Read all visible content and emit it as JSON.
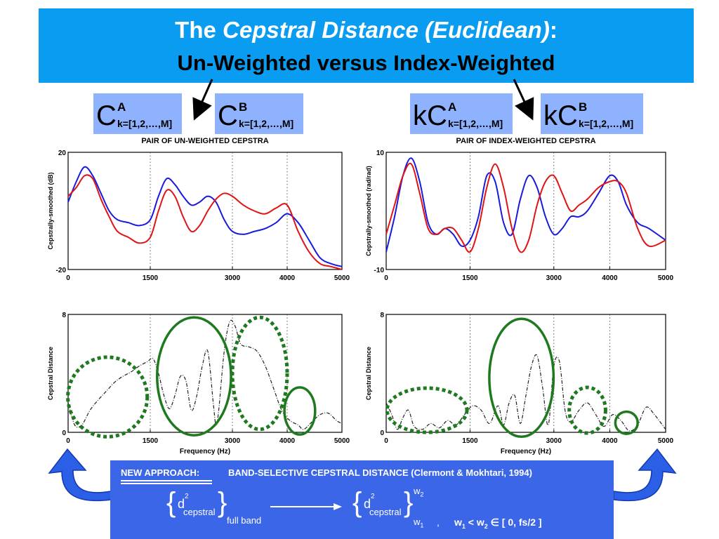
{
  "header": {
    "title_prefix": "The ",
    "title_italic": "Cepstral Distance (Euclidean)",
    "title_suffix": ":",
    "subtitle": "Un-Weighted versus Index-Weighted"
  },
  "labels": [
    {
      "prefix": "",
      "main": "C",
      "sup": "A",
      "sub": "k=[1,2,…,M]"
    },
    {
      "prefix": "",
      "main": "C",
      "sup": "B",
      "sub": "k=[1,2,…,M]"
    },
    {
      "prefix": "k",
      "main": "C",
      "sup": "A",
      "sub": "k=[1,2,…,M]"
    },
    {
      "prefix": "k",
      "main": "C",
      "sup": "B",
      "sub": "k=[1,2,…,M]"
    }
  ],
  "chart_data": [
    {
      "type": "line",
      "title": "PAIR OF UN-WEIGHTED CEPSTRA",
      "ylabel": "Cepstrally-smoothed (dB)",
      "xlabel": "",
      "xlim": [
        0,
        5000
      ],
      "ylim": [
        -20,
        20
      ],
      "xticks": [
        "0",
        "1500",
        "3000",
        "4000",
        "5000"
      ],
      "yticks": [
        "-20",
        "20"
      ],
      "vlines": [
        1500,
        3000,
        4000
      ],
      "series": [
        {
          "color": "#1a1adf",
          "x": [
            0,
            150,
            300,
            450,
            600,
            750,
            900,
            1100,
            1300,
            1500,
            1650,
            1800,
            1950,
            2100,
            2250,
            2400,
            2550,
            2700,
            2850,
            3000,
            3200,
            3400,
            3600,
            3800,
            4000,
            4200,
            4400,
            4600,
            4800,
            5000
          ],
          "y": [
            3,
            10,
            15,
            12,
            6,
            0,
            -3,
            -4,
            -5,
            -3,
            5,
            11,
            9,
            5,
            2,
            3,
            5,
            3,
            -3,
            -7,
            -8,
            -7,
            -6,
            -4,
            -1,
            -4,
            -10,
            -16,
            -18,
            -19
          ]
        },
        {
          "color": "#e01414",
          "x": [
            0,
            150,
            300,
            450,
            600,
            750,
            900,
            1100,
            1300,
            1500,
            1650,
            1800,
            1950,
            2100,
            2250,
            2400,
            2550,
            2700,
            2850,
            3000,
            3200,
            3400,
            3600,
            3800,
            4000,
            4200,
            4400,
            4600,
            4800,
            5000
          ],
          "y": [
            5,
            8,
            12,
            11,
            4,
            -2,
            -7,
            -9,
            -11,
            -9,
            0,
            7,
            5,
            -2,
            -7,
            -5,
            0,
            4,
            6,
            5,
            2,
            0,
            -1,
            1,
            2,
            -7,
            -14,
            -18,
            -19,
            -20
          ]
        }
      ]
    },
    {
      "type": "line",
      "title": "PAIR OF INDEX-WEIGHTED CEPSTRA",
      "ylabel": "Cepstrally-smoothed (rad/rad)",
      "xlabel": "",
      "xlim": [
        0,
        5000
      ],
      "ylim": [
        -10,
        10
      ],
      "xticks": [
        "0",
        "1500",
        "3000",
        "4000",
        "5000"
      ],
      "yticks": [
        "-10",
        "10"
      ],
      "vlines": [
        1500,
        3000,
        4000
      ],
      "series": [
        {
          "color": "#1a1adf",
          "x": [
            0,
            150,
            300,
            450,
            600,
            750,
            900,
            1050,
            1200,
            1350,
            1500,
            1650,
            1800,
            1950,
            2100,
            2250,
            2400,
            2550,
            2700,
            2850,
            3000,
            3150,
            3300,
            3450,
            3600,
            3800,
            4000,
            4150,
            4300,
            4500,
            4700,
            5000
          ],
          "y": [
            -7,
            -1,
            6,
            9,
            5,
            -2,
            -4,
            -3,
            -4,
            -6,
            -5,
            -1,
            6,
            5,
            -2,
            -4,
            2,
            6,
            4,
            -1,
            -4,
            -3,
            -1,
            -1,
            0,
            3,
            6,
            5,
            1,
            -2,
            -3,
            -5
          ]
        },
        {
          "color": "#e01414",
          "x": [
            0,
            150,
            300,
            450,
            600,
            750,
            900,
            1050,
            1200,
            1350,
            1500,
            1650,
            1800,
            1950,
            2100,
            2250,
            2400,
            2550,
            2700,
            2850,
            3000,
            3150,
            3300,
            3450,
            3600,
            3800,
            4000,
            4150,
            4300,
            4500,
            4700,
            5000
          ],
          "y": [
            -4,
            1,
            6,
            8,
            3,
            -3,
            -4,
            -3,
            -3,
            -5,
            -7,
            -3,
            4,
            8,
            4,
            -3,
            -7,
            -5,
            1,
            5,
            6,
            3,
            0,
            1,
            2,
            4,
            5,
            5,
            3,
            -3,
            -6,
            -5
          ]
        }
      ]
    },
    {
      "type": "line",
      "title": "",
      "ylabel": "Cepstral Distance",
      "xlabel": "Frequency (Hz)",
      "xlim": [
        0,
        5000
      ],
      "ylim": [
        0,
        8
      ],
      "xticks": [
        "0",
        "1500",
        "3000",
        "4000",
        "5000"
      ],
      "yticks": [
        "0",
        "8"
      ],
      "vlines": [
        1500,
        3000,
        4000
      ],
      "series": [
        {
          "color": "#222222",
          "x": [
            0,
            120,
            250,
            400,
            550,
            700,
            850,
            1000,
            1150,
            1300,
            1450,
            1550,
            1650,
            1750,
            1850,
            1950,
            2050,
            2150,
            2250,
            2350,
            2450,
            2550,
            2650,
            2700,
            2750,
            2850,
            2950,
            3050,
            3150,
            3300,
            3450,
            3600,
            3750,
            3900,
            4050,
            4200,
            4300,
            4450,
            4600,
            4750,
            4900,
            5000
          ],
          "y": [
            2,
            0.5,
            0.5,
            1.5,
            2.2,
            2.8,
            3.4,
            3.8,
            4.1,
            4.5,
            4.8,
            5,
            4,
            2.5,
            1.6,
            2.5,
            3.8,
            3.5,
            1.5,
            2.5,
            4.5,
            5.5,
            2,
            0.5,
            1.5,
            5.5,
            7.5,
            7.2,
            6,
            5.8,
            5.5,
            4.5,
            3,
            1.5,
            0.8,
            0.5,
            0.2,
            0.7,
            1.2,
            1.3,
            0.8,
            0.6
          ]
        }
      ],
      "ellipses": [
        {
          "cx": 720,
          "cy": 2.4,
          "rx": 1450,
          "ry": 2.7,
          "style": "dotted"
        },
        {
          "cx": 2300,
          "cy": 3.8,
          "rx": 1350,
          "ry": 4.0,
          "style": "solid"
        },
        {
          "cx": 3500,
          "cy": 4.0,
          "rx": 1000,
          "ry": 3.8,
          "style": "dotted"
        },
        {
          "cx": 4230,
          "cy": 1.45,
          "rx": 560,
          "ry": 1.6,
          "style": "solid"
        }
      ]
    },
    {
      "type": "line",
      "title": "",
      "ylabel": "Cepstral Distance",
      "xlabel": "Frequency (Hz)",
      "xlim": [
        0,
        5000
      ],
      "ylim": [
        0,
        8
      ],
      "xticks": [
        "0",
        "1500",
        "3000",
        "4000",
        "5000"
      ],
      "yticks": [
        "0",
        "8"
      ],
      "vlines": [
        1500,
        3000,
        4000
      ],
      "series": [
        {
          "color": "#222222",
          "x": [
            0,
            100,
            200,
            300,
            400,
            500,
            650,
            800,
            950,
            1100,
            1250,
            1400,
            1550,
            1700,
            1850,
            2000,
            2100,
            2200,
            2300,
            2400,
            2500,
            2600,
            2700,
            2800,
            2900,
            3000,
            3100,
            3200,
            3300,
            3450,
            3600,
            3750,
            3900,
            4050,
            4200,
            4350,
            4500,
            4650,
            4800,
            5000
          ],
          "y": [
            2,
            1.2,
            0.2,
            1,
            1.5,
            0.4,
            0.2,
            0.6,
            0.3,
            0.8,
            0.5,
            1.2,
            1.8,
            1.5,
            0.6,
            1.8,
            0.5,
            2,
            2.5,
            0.6,
            2.5,
            4.5,
            5.2,
            3,
            0.5,
            4.5,
            4.8,
            1.5,
            0.7,
            1.5,
            2,
            1.2,
            0.4,
            1.2,
            0.8,
            0.1,
            0.5,
            1.7,
            1.2,
            0.2
          ]
        }
      ],
      "ellipses": [
        {
          "cx": 730,
          "cy": 1.5,
          "rx": 1430,
          "ry": 1.5,
          "style": "dotted"
        },
        {
          "cx": 2420,
          "cy": 3.7,
          "rx": 1150,
          "ry": 4.0,
          "style": "solid"
        },
        {
          "cx": 3600,
          "cy": 1.5,
          "rx": 650,
          "ry": 1.55,
          "style": "dotted"
        },
        {
          "cx": 4300,
          "cy": 0.65,
          "rx": 400,
          "ry": 0.75,
          "style": "solid"
        }
      ]
    }
  ],
  "bottom_box": {
    "new_approach": "NEW APPROACH:",
    "description": "BAND-SELECTIVE CEPSTRAL DISTANCE (Clermont & Mokhtari, 1994)",
    "d": "d",
    "exp": "2",
    "cepstral": "cepstral",
    "full_band": "full band",
    "w2": "w",
    "w2_sub": "2",
    "w1": "w",
    "w1_sub": "1",
    "comma": ",",
    "range_a": "w",
    "range_a_sub": "1",
    "lt": "<",
    "range_b": "w",
    "range_b_sub": "2",
    "elem": "∈",
    "interval": "[ 0, fs/2 ]"
  },
  "colors": {
    "banner": "#0a9cf0",
    "label_bg": "#8fb2ff",
    "box": "#3b66e8",
    "arrow_blue": "#2a5fe6",
    "ellipse": "#1f7a1f"
  }
}
